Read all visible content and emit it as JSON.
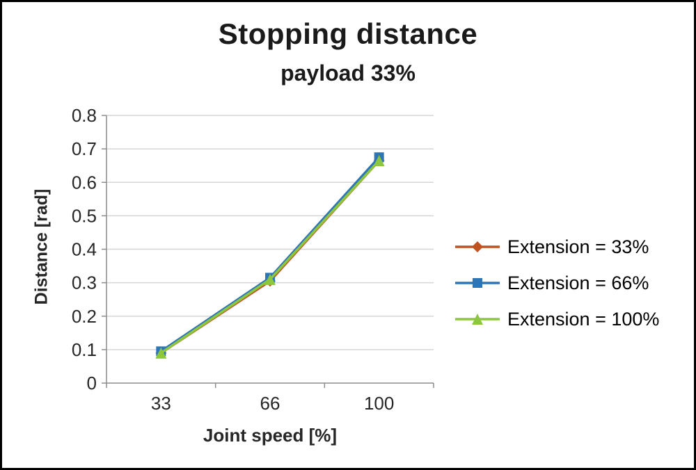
{
  "chart_data": {
    "type": "line",
    "title": "Stopping distance",
    "subtitle": "payload 33%",
    "xlabel": "Joint speed [%]",
    "ylabel": "Distance [rad]",
    "categories": [
      "33",
      "66",
      "100"
    ],
    "ylim": [
      0,
      0.8
    ],
    "ytick_step": 0.1,
    "grid": "horizontal",
    "legend_position": "right",
    "series": [
      {
        "name": "Extension = 33%",
        "marker": "diamond",
        "color": "#C0521F",
        "values": [
          0.09,
          0.305,
          0.665
        ]
      },
      {
        "name": "Extension = 66%",
        "marker": "square",
        "color": "#2E75B6",
        "values": [
          0.095,
          0.315,
          0.675
        ]
      },
      {
        "name": "Extension = 100%",
        "marker": "triangle",
        "color": "#8DC63F",
        "values": [
          0.09,
          0.31,
          0.665
        ]
      }
    ]
  },
  "axes": {
    "ytick_labels": [
      "0",
      "0.1",
      "0.2",
      "0.3",
      "0.4",
      "0.5",
      "0.6",
      "0.7",
      "0.8"
    ],
    "axis_color": "#8c8c8c",
    "grid_color": "#d6d6d6",
    "tick_label_color": "#262626"
  }
}
